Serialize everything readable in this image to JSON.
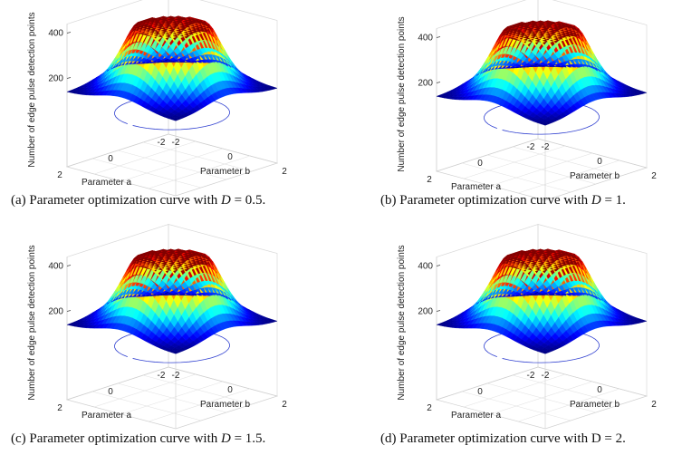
{
  "chart_data": [
    {
      "type": "surface3d",
      "zlabel": "Number of edge pulse detection points",
      "xlabel": "Parameter    a",
      "ylabel": "Parameter    b",
      "zticks": [
        "200",
        "400"
      ],
      "xticks": [
        "2",
        "0",
        "-2"
      ],
      "yticks": [
        "-2",
        "0",
        "2"
      ],
      "zlim": [
        0,
        420
      ],
      "xlim": [
        -2,
        2
      ],
      "ylim": [
        -2,
        2
      ],
      "colormap": "jet",
      "caption_prefix": "(a) Parameter optimization curve with ",
      "caption_var": "D",
      "caption_suffix": " = 0.5."
    },
    {
      "type": "surface3d",
      "zlabel": "Number of edge pulse detection points",
      "xlabel": "Parameter    a",
      "ylabel": "Parameter    b",
      "zticks": [
        "200",
        "400"
      ],
      "xticks": [
        "2",
        "0",
        "-2"
      ],
      "yticks": [
        "-2",
        "0",
        "2"
      ],
      "zlim": [
        0,
        420
      ],
      "xlim": [
        -2,
        2
      ],
      "ylim": [
        -2,
        2
      ],
      "colormap": "jet",
      "caption_prefix": "(b) Parameter optimization curve with ",
      "caption_var": "D",
      "caption_suffix": " = 1."
    },
    {
      "type": "surface3d",
      "zlabel": "Number of edge pulse detection points",
      "xlabel": "Parameter    a",
      "ylabel": "Parameter    b",
      "zticks": [
        "200",
        "400"
      ],
      "xticks": [
        "2",
        "0",
        "-2"
      ],
      "yticks": [
        "-2",
        "0",
        "2"
      ],
      "zlim": [
        0,
        420
      ],
      "xlim": [
        -2,
        2
      ],
      "ylim": [
        -2,
        2
      ],
      "colormap": "jet",
      "caption_prefix": "(c) Parameter optimization curve with ",
      "caption_var": "D",
      "caption_suffix": " = 1.5."
    },
    {
      "type": "surface3d",
      "zlabel": "Number of edge pulse detection points",
      "xlabel": "Parameter    a",
      "ylabel": "Parameter    b",
      "zticks": [
        "200",
        "400"
      ],
      "xticks": [
        "2",
        "0",
        "-2"
      ],
      "yticks": [
        "-2",
        "0",
        "2"
      ],
      "zlim": [
        0,
        420
      ],
      "xlim": [
        -2,
        2
      ],
      "ylim": [
        -2,
        2
      ],
      "colormap": "jet",
      "caption_prefix": "(d) Parameter optimization curve with ",
      "caption_var": "",
      "caption_suffix": "D = 2."
    }
  ]
}
